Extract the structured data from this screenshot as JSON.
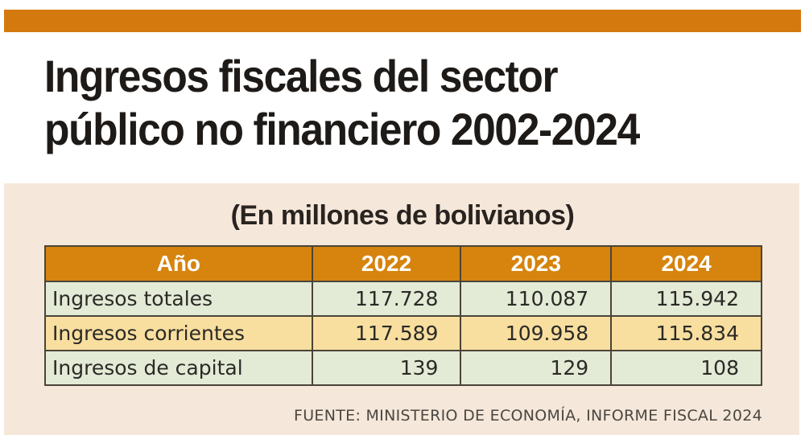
{
  "colors": {
    "accent_bar": "#d4790d",
    "header_bg": "#d6840e",
    "panel_bg": "#f5e8da",
    "row_green": "#e3ead6",
    "row_yellow": "#f8dfa0"
  },
  "title": {
    "line1": "Ingresos fiscales del sector",
    "line2": "público no financiero 2002-2024"
  },
  "subtitle": "(En millones de bolivianos)",
  "table": {
    "headers": [
      "Año",
      "2022",
      "2023",
      "2024"
    ],
    "rows": [
      {
        "label": "Ingresos totales",
        "values": [
          "117.728",
          "110.087",
          "115.942"
        ]
      },
      {
        "label": "Ingresos corrientes",
        "values": [
          "117.589",
          "109.958",
          "115.834"
        ]
      },
      {
        "label": "Ingresos de capital",
        "values": [
          "139",
          "129",
          "108"
        ]
      }
    ]
  },
  "source": "FUENTE: MINISTERIO DE ECONOMÍA, INFORME FISCAL 2024"
}
